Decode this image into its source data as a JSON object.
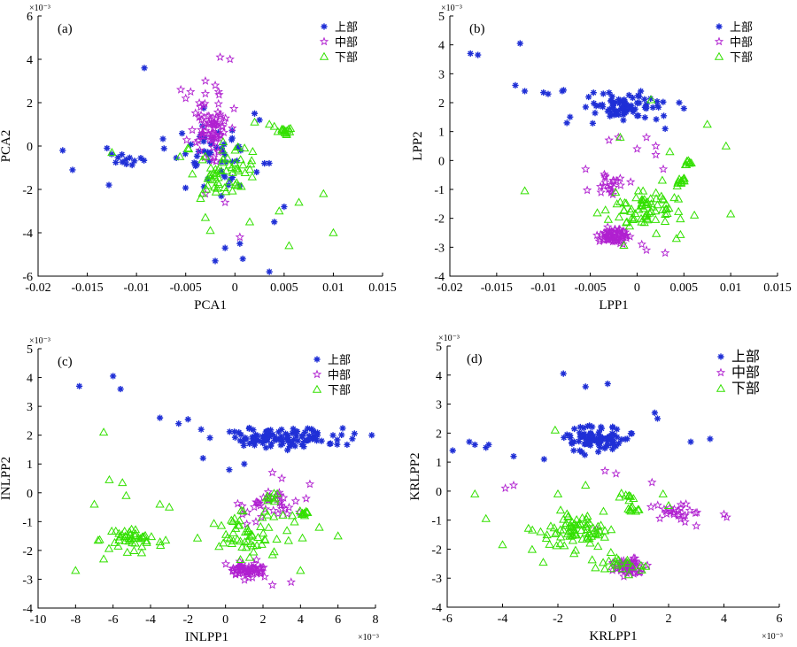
{
  "chart_data": [
    {
      "type": "scatter",
      "panel_label": "(a)",
      "xlabel": "PCA1",
      "ylabel": "PCA2",
      "xlim": [
        -0.02,
        0.015
      ],
      "ylim": [
        -6,
        6
      ],
      "xticks": [
        "-0.02",
        "-0.015",
        "-0.01",
        "-0.005",
        "0",
        "0.005",
        "0.01",
        "0.015"
      ],
      "yticks": [
        "-6",
        "-4",
        "-2",
        "0",
        "2",
        "4",
        "6"
      ],
      "x_exponent": "",
      "y_exponent": "×10⁻³",
      "legend_position": "top-right",
      "series": [
        {
          "name": "上部",
          "marker": "asterisk",
          "color": "#1f2fd6",
          "clusters": [
            {
              "center": [
                -0.002,
                -0.6
              ],
              "spread": [
                0.0035,
                1.3
              ],
              "n": 55
            },
            {
              "center": [
                -0.011,
                -0.5
              ],
              "spread": [
                0.0015,
                0.45
              ],
              "n": 12
            }
          ],
          "points": [
            [
              -0.0175,
              -0.2
            ],
            [
              -0.0165,
              -1.1
            ],
            [
              -0.013,
              -0.1
            ],
            [
              -0.0128,
              -1.8
            ],
            [
              -0.0092,
              3.6
            ],
            [
              0.0005,
              -4.5
            ],
            [
              -0.001,
              -4.7
            ],
            [
              0.0008,
              -5.2
            ],
            [
              -0.002,
              -5.3
            ],
            [
              0.0035,
              -5.8
            ],
            [
              0.004,
              -3.5
            ],
            [
              0.005,
              -2.8
            ],
            [
              0.002,
              1.5
            ],
            [
              0.0025,
              1.2
            ],
            [
              0.003,
              -0.8
            ]
          ]
        },
        {
          "name": "中部",
          "marker": "star",
          "color": "#b020d0",
          "clusters": [
            {
              "center": [
                -0.0025,
                1.0
              ],
              "spread": [
                0.0018,
                1.1
              ],
              "n": 70
            }
          ],
          "points": [
            [
              -0.0055,
              2.6
            ],
            [
              -0.005,
              2.2
            ],
            [
              -0.0045,
              2.5
            ],
            [
              -0.003,
              3.0
            ],
            [
              -0.002,
              2.8
            ],
            [
              -0.0035,
              1.8
            ],
            [
              -0.0015,
              4.1
            ],
            [
              -0.0005,
              4.0
            ],
            [
              -0.003,
              -2.2
            ],
            [
              -0.001,
              -2.6
            ],
            [
              0.0005,
              -4.2
            ]
          ]
        },
        {
          "name": "下部",
          "marker": "triangle",
          "color": "#33e000",
          "clusters": [
            {
              "center": [
                -0.001,
                -1.2
              ],
              "spread": [
                0.0032,
                1.2
              ],
              "n": 60
            },
            {
              "center": [
                0.0052,
                0.7
              ],
              "spread": [
                0.0006,
                0.18
              ],
              "n": 14
            }
          ],
          "points": [
            [
              -0.0125,
              -0.3
            ],
            [
              -0.0025,
              -3.9
            ],
            [
              0.0055,
              -4.6
            ],
            [
              0.009,
              -2.2
            ],
            [
              0.01,
              -4.0
            ],
            [
              0.0065,
              -2.6
            ],
            [
              0.0045,
              -3.0
            ],
            [
              0.0015,
              -3.5
            ],
            [
              -0.003,
              -3.3
            ],
            [
              0.002,
              1.1
            ],
            [
              0.0035,
              1.0
            ],
            [
              0.004,
              0.9
            ]
          ]
        }
      ]
    },
    {
      "type": "scatter",
      "panel_label": "(b)",
      "xlabel": "LPP1",
      "ylabel": "LPP2",
      "xlim": [
        -0.02,
        0.015
      ],
      "ylim": [
        -4,
        5
      ],
      "xticks": [
        "-0.02",
        "-0.015",
        "-0.01",
        "-0.005",
        "0",
        "0.005",
        "0.01",
        "0.015"
      ],
      "yticks": [
        "-4",
        "-3",
        "-2",
        "-1",
        "0",
        "1",
        "2",
        "3",
        "4",
        "5"
      ],
      "x_exponent": "",
      "y_exponent": "×10⁻³",
      "legend_position": "top-right",
      "series": [
        {
          "name": "上部",
          "marker": "asterisk",
          "color": "#1f2fd6",
          "clusters": [
            {
              "center": [
                -0.002,
                1.8
              ],
              "spread": [
                0.0035,
                0.4
              ],
              "n": 85
            }
          ],
          "points": [
            [
              -0.0178,
              3.7
            ],
            [
              -0.017,
              3.65
            ],
            [
              -0.0125,
              4.05
            ],
            [
              -0.013,
              2.6
            ],
            [
              -0.012,
              2.4
            ],
            [
              -0.01,
              2.35
            ],
            [
              -0.0095,
              2.3
            ],
            [
              -0.008,
              2.4
            ],
            [
              -0.0075,
              1.3
            ],
            [
              0.005,
              1.8
            ],
            [
              0.0045,
              2.0
            ],
            [
              0.003,
              1.1
            ]
          ]
        },
        {
          "name": "中部",
          "marker": "star",
          "color": "#b020d0",
          "clusters": [
            {
              "center": [
                -0.0025,
                -2.6
              ],
              "spread": [
                0.0012,
                0.25
              ],
              "n": 65
            },
            {
              "center": [
                -0.003,
                -0.9
              ],
              "spread": [
                0.0015,
                0.35
              ],
              "n": 22
            }
          ],
          "points": [
            [
              -0.003,
              0.7
            ],
            [
              -0.002,
              0.8
            ],
            [
              0.0,
              0.4
            ],
            [
              0.001,
              0.8
            ],
            [
              0.002,
              0.5
            ],
            [
              0.0028,
              -0.3
            ],
            [
              0.001,
              -3.1
            ],
            [
              0.0005,
              -2.9
            ],
            [
              0.003,
              -3.2
            ],
            [
              -0.0055,
              -0.3
            ],
            [
              0.002,
              0.2
            ]
          ]
        },
        {
          "name": "下部",
          "marker": "triangle",
          "color": "#33e000",
          "clusters": [
            {
              "center": [
                0.001,
                -1.6
              ],
              "spread": [
                0.0032,
                0.7
              ],
              "n": 75
            },
            {
              "center": [
                0.0048,
                -0.7
              ],
              "spread": [
                0.0006,
                0.12
              ],
              "n": 12
            },
            {
              "center": [
                0.0055,
                -0.1
              ],
              "spread": [
                0.0005,
                0.08
              ],
              "n": 8
            }
          ],
          "points": [
            [
              -0.012,
              -1.05
            ],
            [
              0.0015,
              2.1
            ],
            [
              0.0075,
              1.25
            ],
            [
              0.0095,
              0.5
            ],
            [
              0.01,
              -1.85
            ],
            [
              0.0042,
              -2.7
            ],
            [
              -0.0018,
              0.8
            ],
            [
              0.0035,
              0.3
            ]
          ]
        }
      ]
    },
    {
      "type": "scatter",
      "panel_label": "(c)",
      "xlabel": "INLPP1",
      "ylabel": "INLPP2",
      "xlim": [
        -10,
        8
      ],
      "ylim": [
        -4,
        5
      ],
      "xticks": [
        "-10",
        "-8",
        "-6",
        "-4",
        "-2",
        "0",
        "2",
        "4",
        "6",
        "8"
      ],
      "yticks": [
        "-4",
        "-3",
        "-2",
        "-1",
        "0",
        "1",
        "2",
        "3",
        "4",
        "5"
      ],
      "x_exponent": "×10⁻³",
      "y_exponent": "×10⁻³",
      "legend_position": "top-right",
      "series": [
        {
          "name": "上部",
          "marker": "asterisk",
          "color": "#1f2fd6",
          "clusters": [
            {
              "center": [
                3.0,
                1.9
              ],
              "spread": [
                2.6,
                0.3
              ],
              "n": 110
            }
          ],
          "points": [
            [
              -7.8,
              3.7
            ],
            [
              -6.0,
              4.05
            ],
            [
              -5.6,
              3.6
            ],
            [
              -3.5,
              2.6
            ],
            [
              -2.5,
              2.4
            ],
            [
              -1.3,
              2.2
            ],
            [
              -1.2,
              1.2
            ],
            [
              0.2,
              0.8
            ],
            [
              1.0,
              1.0
            ],
            [
              7.8,
              2.0
            ],
            [
              -2.0,
              2.55
            ]
          ]
        },
        {
          "name": "中部",
          "marker": "star",
          "color": "#b020d0",
          "clusters": [
            {
              "center": [
                1.2,
                -2.7
              ],
              "spread": [
                1.0,
                0.25
              ],
              "n": 60
            },
            {
              "center": [
                2.3,
                -0.4
              ],
              "spread": [
                1.2,
                0.45
              ],
              "n": 35
            }
          ],
          "points": [
            [
              2.5,
              0.7
            ],
            [
              3.0,
              0.5
            ],
            [
              4.5,
              0.3
            ],
            [
              4.3,
              -0.2
            ],
            [
              3.5,
              -3.1
            ],
            [
              2.5,
              -3.2
            ]
          ]
        },
        {
          "name": "下部",
          "marker": "triangle",
          "color": "#33e000",
          "clusters": [
            {
              "center": [
                -5.0,
                -1.6
              ],
              "spread": [
                1.4,
                0.3
              ],
              "n": 45
            },
            {
              "center": [
                1.3,
                -1.5
              ],
              "spread": [
                1.9,
                0.8
              ],
              "n": 60
            },
            {
              "center": [
                4.2,
                -0.7
              ],
              "spread": [
                0.35,
                0.1
              ],
              "n": 12
            },
            {
              "center": [
                2.5,
                -0.15
              ],
              "spread": [
                0.4,
                0.12
              ],
              "n": 8
            }
          ],
          "points": [
            [
              -8.0,
              -2.7
            ],
            [
              -7.0,
              -0.4
            ],
            [
              -6.5,
              2.1
            ],
            [
              -6.2,
              0.45
            ],
            [
              -5.5,
              0.35
            ],
            [
              -5.3,
              -0.1
            ],
            [
              -3.5,
              -0.4
            ],
            [
              -3.0,
              -0.5
            ],
            [
              -6.5,
              -2.3
            ],
            [
              5.0,
              -1.2
            ],
            [
              6.0,
              -1.5
            ],
            [
              4.0,
              -2.7
            ]
          ]
        }
      ]
    },
    {
      "type": "scatter",
      "panel_label": "(d)",
      "xlabel": "KRLPP1",
      "ylabel": "KRLPP2",
      "xlim": [
        -6,
        6
      ],
      "ylim": [
        -4,
        5
      ],
      "xticks": [
        "-6",
        "-4",
        "-2",
        "0",
        "2",
        "4",
        "6"
      ],
      "yticks": [
        "-4",
        "-3",
        "-2",
        "-1",
        "0",
        "1",
        "2",
        "3",
        "4",
        "5"
      ],
      "x_exponent": "×10⁻³",
      "y_exponent": "×10⁻³",
      "legend_position": "top-right",
      "series": [
        {
          "name": "上部",
          "marker": "asterisk",
          "color": "#1f2fd6",
          "clusters": [
            {
              "center": [
                -0.6,
                1.8
              ],
              "spread": [
                1.0,
                0.35
              ],
              "n": 95
            }
          ],
          "points": [
            [
              -5.8,
              1.4
            ],
            [
              -5.0,
              1.6
            ],
            [
              -5.2,
              1.7
            ],
            [
              -4.6,
              1.5
            ],
            [
              -4.5,
              1.6
            ],
            [
              -3.6,
              1.2
            ],
            [
              -1.8,
              4.05
            ],
            [
              -1.0,
              3.6
            ],
            [
              -0.2,
              3.7
            ],
            [
              1.5,
              2.7
            ],
            [
              1.6,
              2.5
            ],
            [
              2.8,
              1.7
            ],
            [
              3.5,
              1.8
            ],
            [
              -2.5,
              1.1
            ]
          ]
        },
        {
          "name": "中部",
          "marker": "star",
          "color": "#b020d0",
          "clusters": [
            {
              "center": [
                0.5,
                -2.6
              ],
              "spread": [
                0.5,
                0.2
              ],
              "n": 60
            },
            {
              "center": [
                2.4,
                -0.7
              ],
              "spread": [
                0.6,
                0.3
              ],
              "n": 25
            }
          ],
          "points": [
            [
              -3.9,
              0.1
            ],
            [
              -3.6,
              0.2
            ],
            [
              -0.3,
              0.7
            ],
            [
              0.1,
              0.6
            ],
            [
              1.4,
              0.3
            ],
            [
              3.0,
              -1.2
            ],
            [
              4.0,
              -0.8
            ],
            [
              4.1,
              -0.9
            ],
            [
              -0.6,
              -1.3
            ]
          ]
        },
        {
          "name": "下部",
          "marker": "triangle",
          "color": "#33e000",
          "clusters": [
            {
              "center": [
                -1.2,
                -1.3
              ],
              "spread": [
                1.1,
                0.6
              ],
              "n": 80
            },
            {
              "center": [
                0.4,
                -2.5
              ],
              "spread": [
                0.6,
                0.25
              ],
              "n": 20
            },
            {
              "center": [
                0.5,
                -0.2
              ],
              "spread": [
                0.25,
                0.1
              ],
              "n": 8
            },
            {
              "center": [
                0.8,
                -0.6
              ],
              "spread": [
                0.2,
                0.12
              ],
              "n": 8
            }
          ],
          "points": [
            [
              -5.0,
              -0.1
            ],
            [
              -4.6,
              -0.95
            ],
            [
              -4.0,
              -1.85
            ],
            [
              -2.0,
              -0.1
            ],
            [
              -1.0,
              0.2
            ],
            [
              1.8,
              -0.1
            ],
            [
              2.0,
              -0.5
            ],
            [
              -2.1,
              2.1
            ]
          ]
        }
      ]
    }
  ]
}
